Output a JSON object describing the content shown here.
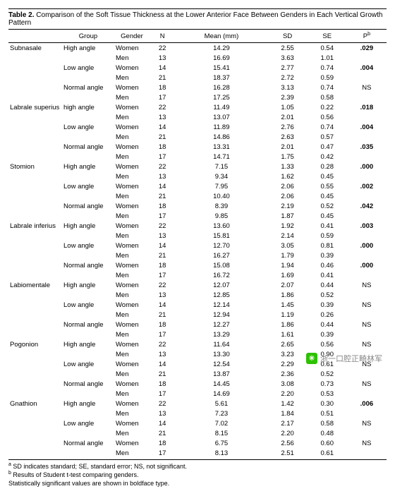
{
  "table_label": "Table 2.",
  "table_title": "Comparison of the Soft Tissue Thickness at the Lower Anterior Face Between Genders in Each Vertical Growth Pattern",
  "columns": {
    "group": "Group",
    "gender": "Gender",
    "n": "N",
    "mean": "Mean (mm)",
    "sd": "SD",
    "se": "SE",
    "p": "P",
    "p_sup": "b"
  },
  "footnotes": {
    "a": "SD indicates standard; SE, standard error; NS, not significant.",
    "b": "Results of Student t-test comparing genders.",
    "c": "Statistically significant values are shown in boldface type."
  },
  "watermark": "浙一口腔正畸林军",
  "landmarks": [
    {
      "name": "Subnasale",
      "groups": [
        {
          "name": "High angle",
          "p": ".029",
          "p_bold": true,
          "rows": [
            {
              "gender": "Women",
              "n": 22,
              "mean": "14.29",
              "sd": "2.55",
              "se": "0.54"
            },
            {
              "gender": "Men",
              "n": 13,
              "mean": "16.69",
              "sd": "3.63",
              "se": "1.01"
            }
          ]
        },
        {
          "name": "Low angle",
          "p": ".004",
          "p_bold": true,
          "rows": [
            {
              "gender": "Women",
              "n": 14,
              "mean": "15.41",
              "sd": "2.77",
              "se": "0.74"
            },
            {
              "gender": "Men",
              "n": 21,
              "mean": "18.37",
              "sd": "2.72",
              "se": "0.59"
            }
          ]
        },
        {
          "name": "Normal angle",
          "p": "NS",
          "p_bold": false,
          "rows": [
            {
              "gender": "Women",
              "n": 18,
              "mean": "16.28",
              "sd": "3.13",
              "se": "0.74"
            },
            {
              "gender": "Men",
              "n": 17,
              "mean": "17.25",
              "sd": "2.39",
              "se": "0.58"
            }
          ]
        }
      ]
    },
    {
      "name": "Labrale superius",
      "groups": [
        {
          "name": "high angle",
          "p": ".018",
          "p_bold": true,
          "rows": [
            {
              "gender": "Women",
              "n": 22,
              "mean": "11.49",
              "sd": "1.05",
              "se": "0.22"
            },
            {
              "gender": "Men",
              "n": 13,
              "mean": "13.07",
              "sd": "2.01",
              "se": "0.56"
            }
          ]
        },
        {
          "name": "Low angle",
          "p": ".004",
          "p_bold": true,
          "rows": [
            {
              "gender": "Women",
              "n": 14,
              "mean": "11.89",
              "sd": "2.76",
              "se": "0.74"
            },
            {
              "gender": "Men",
              "n": 21,
              "mean": "14.86",
              "sd": "2.63",
              "se": "0.57"
            }
          ]
        },
        {
          "name": "Normal angle",
          "p": ".035",
          "p_bold": true,
          "rows": [
            {
              "gender": "Women",
              "n": 18,
              "mean": "13.31",
              "sd": "2.01",
              "se": "0.47"
            },
            {
              "gender": "Men",
              "n": 17,
              "mean": "14.71",
              "sd": "1.75",
              "se": "0.42"
            }
          ]
        }
      ]
    },
    {
      "name": "Stomion",
      "groups": [
        {
          "name": "High angle",
          "p": ".000",
          "p_bold": true,
          "rows": [
            {
              "gender": "Women",
              "n": 22,
              "mean": "7.15",
              "sd": "1.33",
              "se": "0.28"
            },
            {
              "gender": "Men",
              "n": 13,
              "mean": "9.34",
              "sd": "1.62",
              "se": "0.45"
            }
          ]
        },
        {
          "name": "Low angle",
          "p": ".002",
          "p_bold": true,
          "rows": [
            {
              "gender": "Women",
              "n": 14,
              "mean": "7.95",
              "sd": "2.06",
              "se": "0.55"
            },
            {
              "gender": "Men",
              "n": 21,
              "mean": "10.40",
              "sd": "2.06",
              "se": "0.45"
            }
          ]
        },
        {
          "name": "Normal angle",
          "p": ".042",
          "p_bold": true,
          "rows": [
            {
              "gender": "Women",
              "n": 18,
              "mean": "8.39",
              "sd": "2.19",
              "se": "0.52"
            },
            {
              "gender": "Men",
              "n": 17,
              "mean": "9.85",
              "sd": "1.87",
              "se": "0.45"
            }
          ]
        }
      ]
    },
    {
      "name": "Labrale inferius",
      "groups": [
        {
          "name": "High angle",
          "p": ".003",
          "p_bold": true,
          "rows": [
            {
              "gender": "Women",
              "n": 22,
              "mean": "13.60",
              "sd": "1.92",
              "se": "0.41"
            },
            {
              "gender": "Men",
              "n": 13,
              "mean": "15.81",
              "sd": "2.14",
              "se": "0.59"
            }
          ]
        },
        {
          "name": "Low angle",
          "p": ".000",
          "p_bold": true,
          "rows": [
            {
              "gender": "Women",
              "n": 14,
              "mean": "12.70",
              "sd": "3.05",
              "se": "0.81"
            },
            {
              "gender": "Men",
              "n": 21,
              "mean": "16.27",
              "sd": "1.79",
              "se": "0.39"
            }
          ]
        },
        {
          "name": "Normal angle",
          "p": ".000",
          "p_bold": true,
          "rows": [
            {
              "gender": "Women",
              "n": 18,
              "mean": "15.08",
              "sd": "1.94",
              "se": "0.46"
            },
            {
              "gender": "Men",
              "n": 17,
              "mean": "16.72",
              "sd": "1.69",
              "se": "0.41"
            }
          ]
        }
      ]
    },
    {
      "name": "Labiomentale",
      "groups": [
        {
          "name": "High angle",
          "p": "NS",
          "p_bold": false,
          "rows": [
            {
              "gender": "Women",
              "n": 22,
              "mean": "12.07",
              "sd": "2.07",
              "se": "0.44"
            },
            {
              "gender": "Men",
              "n": 13,
              "mean": "12.85",
              "sd": "1.86",
              "se": "0.52"
            }
          ]
        },
        {
          "name": "Low angle",
          "p": "NS",
          "p_bold": false,
          "rows": [
            {
              "gender": "Women",
              "n": 14,
              "mean": "12.14",
              "sd": "1.45",
              "se": "0.39"
            },
            {
              "gender": "Men",
              "n": 21,
              "mean": "12.94",
              "sd": "1.19",
              "se": "0.26"
            }
          ]
        },
        {
          "name": "Normal angle",
          "p": "NS",
          "p_bold": false,
          "rows": [
            {
              "gender": "Women",
              "n": 18,
              "mean": "12.27",
              "sd": "1.86",
              "se": "0.44"
            },
            {
              "gender": "Men",
              "n": 17,
              "mean": "13.29",
              "sd": "1.61",
              "se": "0.39"
            }
          ]
        }
      ]
    },
    {
      "name": "Pogonion",
      "groups": [
        {
          "name": "High angle",
          "p": "NS",
          "p_bold": false,
          "rows": [
            {
              "gender": "Women",
              "n": 22,
              "mean": "11.64",
              "sd": "2.65",
              "se": "0.56"
            },
            {
              "gender": "Men",
              "n": 13,
              "mean": "13.30",
              "sd": "3.23",
              "se": "0.90"
            }
          ]
        },
        {
          "name": "Low angle",
          "p": "NS",
          "p_bold": false,
          "rows": [
            {
              "gender": "Women",
              "n": 14,
              "mean": "12.54",
              "sd": "2.29",
              "se": "0.61"
            },
            {
              "gender": "Men",
              "n": 21,
              "mean": "13.87",
              "sd": "2.36",
              "se": "0.52"
            }
          ]
        },
        {
          "name": "Normal angle",
          "p": "NS",
          "p_bold": false,
          "rows": [
            {
              "gender": "Women",
              "n": 18,
              "mean": "14.45",
              "sd": "3.08",
              "se": "0.73"
            },
            {
              "gender": "Men",
              "n": 17,
              "mean": "14.69",
              "sd": "2.20",
              "se": "0.53"
            }
          ]
        }
      ]
    },
    {
      "name": "Gnathion",
      "groups": [
        {
          "name": "High angle",
          "p": ".006",
          "p_bold": true,
          "rows": [
            {
              "gender": "Women",
              "n": 22,
              "mean": "5.61",
              "sd": "1.42",
              "se": "0.30"
            },
            {
              "gender": "Men",
              "n": 13,
              "mean": "7.23",
              "sd": "1.84",
              "se": "0.51"
            }
          ]
        },
        {
          "name": "Low angle",
          "p": "NS",
          "p_bold": false,
          "rows": [
            {
              "gender": "Women",
              "n": 14,
              "mean": "7.02",
              "sd": "2.17",
              "se": "0.58"
            },
            {
              "gender": "Men",
              "n": 21,
              "mean": "8.15",
              "sd": "2.20",
              "se": "0.48"
            }
          ]
        },
        {
          "name": "Normal angle",
          "p": "NS",
          "p_bold": false,
          "rows": [
            {
              "gender": "Women",
              "n": 18,
              "mean": "6.75",
              "sd": "2.56",
              "se": "0.60"
            },
            {
              "gender": "Men",
              "n": 17,
              "mean": "8.13",
              "sd": "2.51",
              "se": "0.61"
            }
          ]
        }
      ]
    }
  ]
}
